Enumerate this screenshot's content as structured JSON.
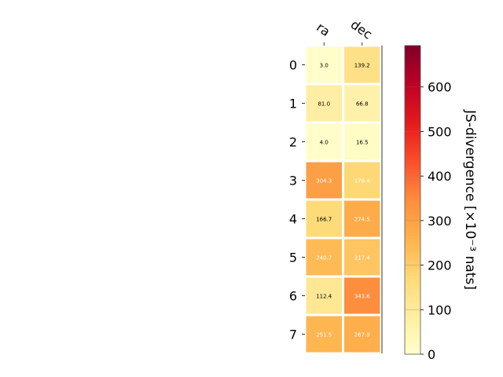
{
  "chart_data": {
    "type": "heatmap",
    "title": "",
    "columns": [
      "ra",
      "dec"
    ],
    "rows": [
      "0",
      "1",
      "2",
      "3",
      "4",
      "5",
      "6",
      "7"
    ],
    "values": [
      [
        3.0,
        139.2
      ],
      [
        81.0,
        66.8
      ],
      [
        4.0,
        16.5
      ],
      [
        304.3,
        176.4
      ],
      [
        166.7,
        274.5
      ],
      [
        240.7,
        217.4
      ],
      [
        112.4,
        343.6
      ],
      [
        251.5,
        267.9
      ]
    ],
    "value_labels": [
      [
        "3.0",
        "139.2"
      ],
      [
        "81.0",
        "66.8"
      ],
      [
        "4.0",
        "16.5"
      ],
      [
        "304.3",
        "176.4"
      ],
      [
        "166.7",
        "274.5"
      ],
      [
        "240.7",
        "217.4"
      ],
      [
        "112.4",
        "343.6"
      ],
      [
        "251.5",
        "267.9"
      ]
    ],
    "colorbar": {
      "label": "JS-divergence [×10⁻³ nats]",
      "range": [
        0,
        693
      ],
      "ticks": [
        0,
        100,
        200,
        300,
        400,
        500,
        600
      ],
      "tick_labels": [
        "0",
        "100",
        "200",
        "300",
        "400",
        "500",
        "600"
      ],
      "colormap": "YlOrRd"
    },
    "label_color_threshold": 173
  }
}
